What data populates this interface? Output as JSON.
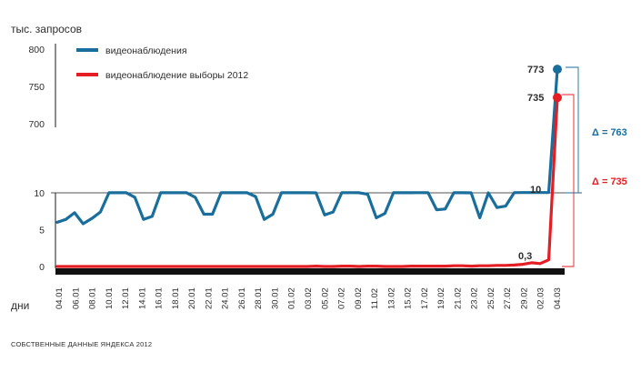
{
  "unit_label": "тыс. запросов",
  "x_axis_label": "дни",
  "source_note": "СОБСТВЕННЫЕ ДАННЫЕ ЯНДЕКСА 2012",
  "colors": {
    "series1": "#1a6e9c",
    "series2": "#e31e24",
    "axis": "#1a1a1a",
    "text": "#2d2d2d"
  },
  "chart_data": {
    "type": "line",
    "y_axis_broken": true,
    "yticks_lower": [
      0,
      5,
      10
    ],
    "yticks_upper": [
      700,
      750,
      800
    ],
    "x_labels": [
      "04.01",
      "06.01",
      "08.01",
      "10.01",
      "12.01",
      "14.01",
      "16.01",
      "18.01",
      "20.01",
      "22.01",
      "24.01",
      "26.01",
      "28.01",
      "30.01",
      "01.02",
      "03.02",
      "05.02",
      "07.02",
      "09.02",
      "11.02",
      "13.02",
      "15.02",
      "17.02",
      "19.02",
      "21.02",
      "23.02",
      "25.02",
      "27.02",
      "29.02",
      "02.03",
      "04.03"
    ],
    "series": [
      {
        "name": "видеонаблюдения",
        "values": [
          6,
          6.4,
          7.3,
          5.8,
          6.5,
          7.4,
          11.3,
          10.8,
          11.2,
          9.4,
          6.4,
          6.8,
          11.7,
          11.2,
          11.1,
          10.6,
          9.4,
          7.1,
          7.1,
          11.5,
          11.3,
          11.2,
          11.1,
          9.5,
          6.4,
          7.1,
          11.1,
          11.1,
          10.5,
          10.6,
          10.1,
          7,
          7.4,
          11.3,
          11.8,
          11,
          9.8,
          6.6,
          7.2,
          11.6,
          11.1,
          11.3,
          11.5,
          10.6,
          7.7,
          7.8,
          11.9,
          11,
          10,
          6.6,
          10.4,
          8,
          8.2,
          12,
          12.3,
          12.8,
          12.7,
          13,
          773
        ]
      },
      {
        "name": "видеонаблюдение выборы 2012",
        "values": [
          0,
          0,
          0,
          0,
          0,
          0,
          0,
          0,
          0,
          0,
          0,
          0,
          0,
          0,
          0,
          0,
          0,
          0,
          0,
          0,
          0,
          0,
          0,
          0,
          0,
          0,
          0,
          0,
          0,
          0,
          0.05,
          0,
          0,
          0.05,
          0.05,
          0,
          0.05,
          0.05,
          0,
          0,
          0,
          0.05,
          0.05,
          0.05,
          0.05,
          0.05,
          0.1,
          0.1,
          0.05,
          0.1,
          0.1,
          0.15,
          0.15,
          0.2,
          0.3,
          0.5,
          0.4,
          0.9,
          735
        ]
      }
    ],
    "annotations": {
      "s1_end": "773",
      "s2_end": "735",
      "s1_before": "10",
      "s2_before": "0,3"
    },
    "deltas": {
      "s1": "Δ = 763",
      "s2": "Δ = 735"
    }
  }
}
